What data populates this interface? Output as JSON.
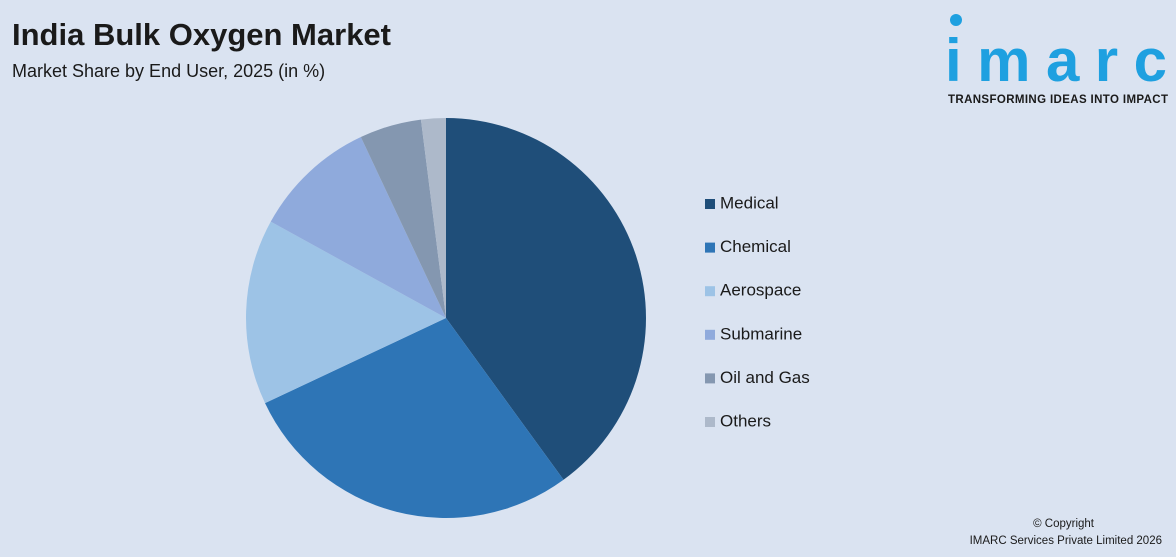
{
  "chart_data": {
    "type": "pie",
    "title": "India Bulk Oxygen Market",
    "subtitle": "Market Share by End User, 2025 (in %)",
    "categories": [
      "Medical",
      "Chemical",
      "Aerospace",
      "Submarine",
      "Oil and Gas",
      "Others"
    ],
    "values": [
      40,
      28,
      15,
      10,
      5,
      2
    ],
    "colors": [
      "#1f4e79",
      "#2e75b6",
      "#9dc3e6",
      "#8faadc",
      "#8497b0",
      "#adb9ca"
    ],
    "legend": "right"
  },
  "logo": {
    "name": "imarc",
    "tagline": "TRANSFORMING IDEAS INTO IMPACT"
  },
  "footer": {
    "copyright": "© Copyright",
    "company": "IMARC Services Private Limited 2026"
  }
}
